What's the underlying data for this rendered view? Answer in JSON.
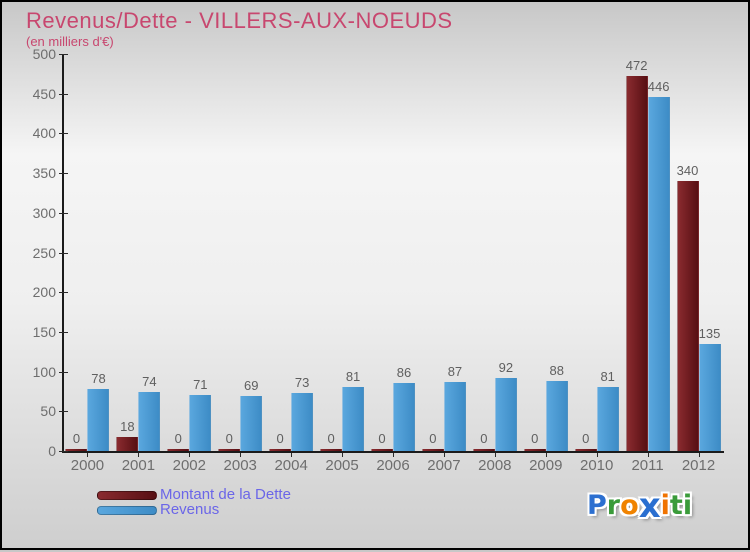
{
  "header": {
    "title": "Revenus/Dette - VILLERS-AUX-NOEUDS",
    "subtitle": "(en milliers d'€)",
    "title_color": "#c8476f"
  },
  "chart_data": {
    "type": "bar",
    "title": "Revenus/Dette - VILLERS-AUX-NOEUDS",
    "unit_label": "(en milliers d'€)",
    "categories": [
      "2000",
      "2001",
      "2002",
      "2003",
      "2004",
      "2005",
      "2006",
      "2007",
      "2008",
      "2009",
      "2010",
      "2011",
      "2012"
    ],
    "series": [
      {
        "name": "Montant de la Dette",
        "values": [
          0,
          18,
          0,
          0,
          0,
          0,
          0,
          0,
          0,
          0,
          0,
          472,
          340
        ],
        "color": "#701a1e",
        "gradient": [
          "#8a2b2f",
          "#570f13"
        ]
      },
      {
        "name": "Revenus",
        "values": [
          78,
          74,
          71,
          69,
          73,
          81,
          86,
          87,
          92,
          88,
          81,
          446,
          135
        ],
        "color": "#4899d3",
        "gradient": [
          "#5aa7de",
          "#3d8cc6"
        ]
      }
    ],
    "ylim": [
      0,
      500
    ],
    "ytick_step": 50,
    "grid": false,
    "value_labels": true,
    "legend_position": "bottom-left"
  },
  "axis": {
    "tick_label_color": "#6e6e6e",
    "line_color": "#1b1b1b",
    "value_label_color": "#5f5f5f"
  },
  "legend": {
    "text_color": "#6b66e8"
  },
  "logo": {
    "name": "Proxiti",
    "letters": [
      {
        "ch": "P",
        "color": "#2c6fd0",
        "big": false
      },
      {
        "ch": "r",
        "color": "#3a9b3a",
        "big": false
      },
      {
        "ch": "o",
        "color": "#f08300",
        "big": false
      },
      {
        "ch": "x",
        "color": "#2a6fd0",
        "big": true
      },
      {
        "ch": "i",
        "color": "#f07300",
        "big": false
      },
      {
        "ch": "t",
        "color": "#3a9b3a",
        "big": false
      },
      {
        "ch": "i",
        "color": "#3a9b3a",
        "big": false
      }
    ]
  }
}
